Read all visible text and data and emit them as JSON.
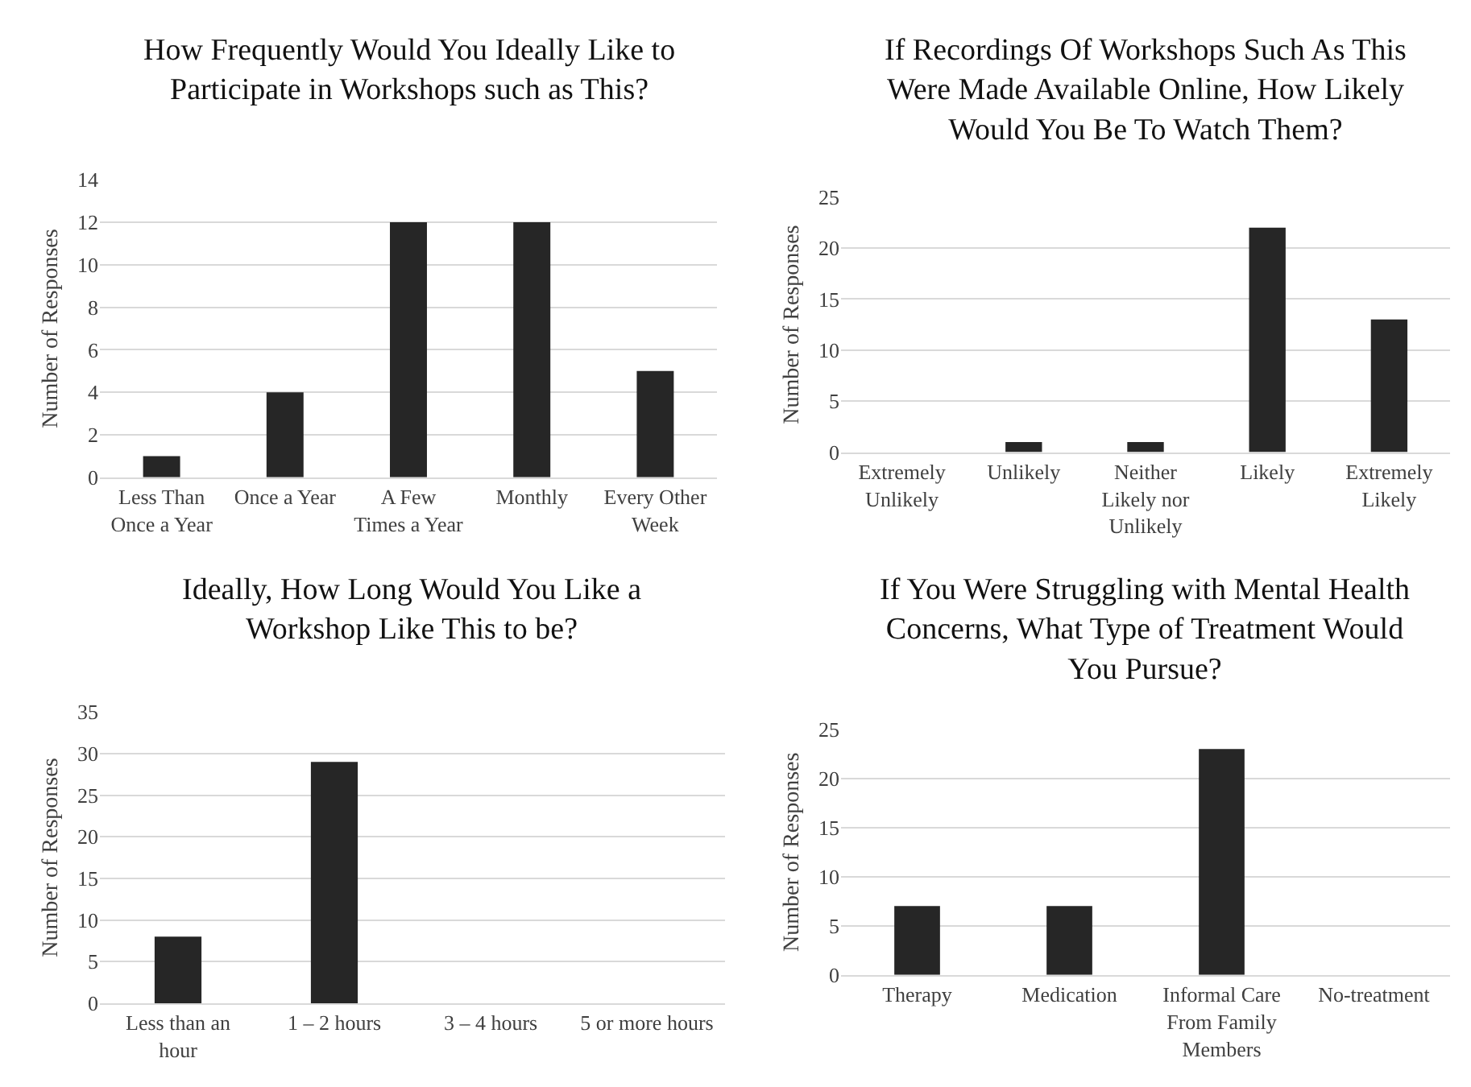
{
  "chart_data": [
    {
      "type": "bar",
      "title": "How Frequently Would You Ideally Like to\nParticipate in Workshops such as This?",
      "ylabel": "Number of Responses",
      "categories": [
        "Less Than\nOnce a Year",
        "Once a Year",
        "A Few\nTimes a Year",
        "Monthly",
        "Every Other\nWeek"
      ],
      "values": [
        1,
        4,
        12,
        12,
        5
      ],
      "color": "#262626",
      "ylim": [
        0,
        14
      ],
      "yticks": [
        0,
        2,
        4,
        6,
        8,
        10,
        12,
        14
      ],
      "grid": "y"
    },
    {
      "type": "bar",
      "title": "If Recordings Of Workshops Such As This\nWere Made Available Online, How Likely\nWould You Be To Watch Them?",
      "ylabel": "Number of Responses",
      "categories": [
        "Extremely\nUnlikely",
        "Unlikely",
        "Neither\nLikely nor\nUnlikely",
        "Likely",
        "Extremely\nLikely"
      ],
      "values": [
        0,
        1,
        1,
        22,
        13
      ],
      "color": "#262626",
      "ylim": [
        0,
        25
      ],
      "yticks": [
        0,
        5,
        10,
        15,
        20,
        25
      ],
      "grid": "y"
    },
    {
      "type": "bar",
      "title": "Ideally, How Long Would You Like a\nWorkshop Like This to be?",
      "ylabel": "Number of Responses",
      "categories": [
        "Less than an\nhour",
        "1 – 2 hours",
        "3 – 4 hours",
        "5 or more hours"
      ],
      "values": [
        8,
        29,
        0,
        0
      ],
      "color": "#262626",
      "ylim": [
        0,
        35
      ],
      "yticks": [
        0,
        5,
        10,
        15,
        20,
        25,
        30,
        35
      ],
      "grid": "y"
    },
    {
      "type": "bar",
      "title": "If You Were Struggling with Mental Health\nConcerns, What Type of Treatment Would\nYou Pursue?",
      "ylabel": "Number of Responses",
      "categories": [
        "Therapy",
        "Medication",
        "Informal Care\nFrom Family\nMembers",
        "No-treatment"
      ],
      "values": [
        7,
        7,
        23,
        0
      ],
      "color": "#262626",
      "ylim": [
        0,
        25
      ],
      "yticks": [
        0,
        5,
        10,
        15,
        20,
        25
      ],
      "grid": "y"
    }
  ]
}
